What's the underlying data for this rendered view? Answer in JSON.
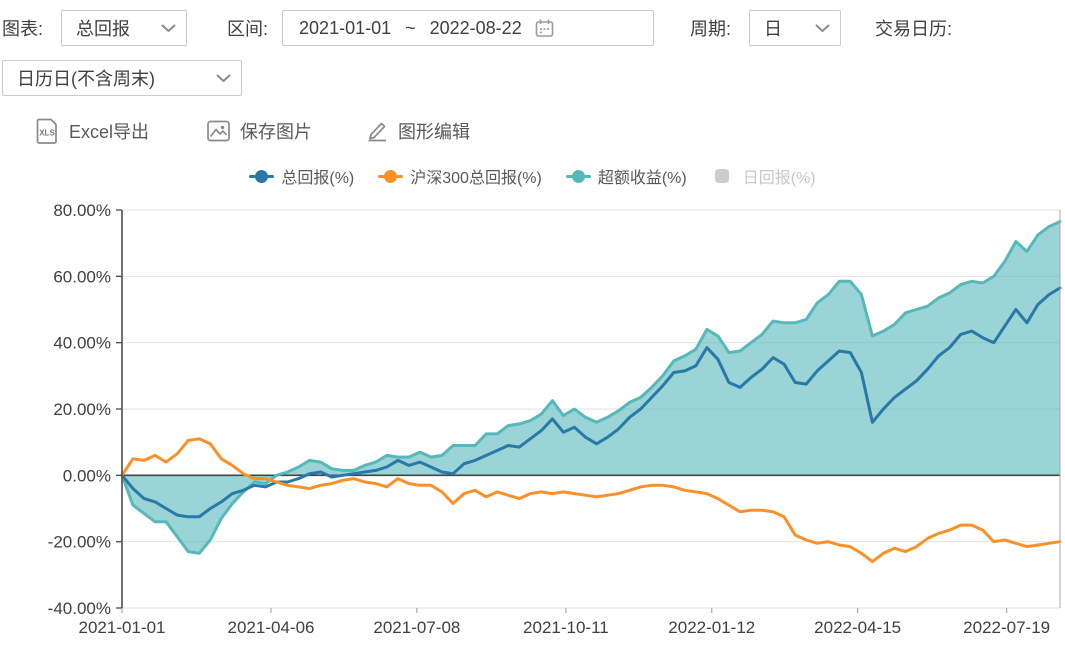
{
  "toolbar": {
    "chart_label": "图表:",
    "chart_select": "总回报",
    "range_label": "区间:",
    "range_start": "2021-01-01",
    "range_separator": "~",
    "range_end": "2022-08-22",
    "period_label": "周期:",
    "period_select": "日",
    "calendar_label": "交易日历:",
    "calendar_select": "日历日(不含周末)"
  },
  "actions": {
    "export_excel": "Excel导出",
    "save_image": "保存图片",
    "edit_graph": "图形编辑",
    "xls_icon_text": "XLS"
  },
  "legend": {
    "items": [
      {
        "label": "总回报(%)",
        "color": "#2878a8",
        "marker": "line-dot",
        "enabled": true
      },
      {
        "label": "沪深300总回报(%)",
        "color": "#fa9128",
        "marker": "line-dot",
        "enabled": true
      },
      {
        "label": "超额收益(%)",
        "color": "#56b8ba",
        "marker": "line-dot",
        "enabled": true
      },
      {
        "label": "日回报(%)",
        "color": "#cccccc",
        "marker": "round-rect",
        "enabled": false
      }
    ]
  },
  "chart_data": {
    "type": "line",
    "x_start": "2021-01-01",
    "x_end": "2022-08-22",
    "total_days": 598,
    "sample_interval_days": 7,
    "x_tick_labels": [
      "2021-01-01",
      "2021-04-06",
      "2021-07-08",
      "2021-10-11",
      "2022-01-12",
      "2022-04-15",
      "2022-07-19"
    ],
    "x_tick_days": [
      0,
      95,
      188,
      283,
      376,
      469,
      564
    ],
    "y_tick_labels": [
      "80.00%",
      "60.00%",
      "40.00%",
      "20.00%",
      "0.00%",
      "-20.00%",
      "-40.00%"
    ],
    "y_ticks": [
      80,
      60,
      40,
      20,
      0,
      -20,
      -40
    ],
    "ylim": [
      -40,
      80
    ],
    "grid": true,
    "legend_position": "top",
    "colors": {
      "grid": "#e2e2e2",
      "axis": "#4d4d4d",
      "zero_line": "#444444",
      "right_border": "#aaaaaa",
      "area_fill": "rgba(86,184,186,0.6)"
    },
    "series": [
      {
        "name": "总回报(%)",
        "type": "line",
        "color": "#2878a8",
        "visible": true,
        "values": [
          0,
          -4,
          -7,
          -8,
          -10,
          -12,
          -12.5,
          -12.5,
          -10,
          -8,
          -5.5,
          -4.5,
          -3,
          -3.5,
          -2,
          -2,
          -1,
          0.5,
          1,
          -0.5,
          0,
          0.5,
          1,
          1.5,
          2.5,
          4.5,
          3,
          4,
          2.5,
          1,
          0.5,
          3.5,
          4.5,
          6,
          7.5,
          9,
          8.5,
          11,
          13.5,
          17,
          13,
          14.5,
          11.5,
          9.5,
          11.5,
          14,
          17.5,
          20,
          23.5,
          27,
          31,
          31.5,
          33,
          38.5,
          35,
          28,
          26.5,
          29.5,
          32,
          35.5,
          33.5,
          28,
          27.5,
          31.5,
          34.5,
          37.5,
          37,
          31,
          16,
          20,
          23.5,
          26,
          28.5,
          32,
          36,
          38.5,
          42.5,
          43.5,
          41.5,
          40,
          45,
          50,
          46,
          51.5,
          54.5,
          56.5
        ]
      },
      {
        "name": "沪深300总回报(%)",
        "type": "line",
        "color": "#fa9128",
        "visible": true,
        "values": [
          0,
          5,
          4.5,
          6,
          4,
          6.5,
          10.5,
          11,
          9.5,
          5,
          3,
          0.5,
          -1,
          -1,
          -2,
          -3,
          -3.5,
          -4,
          -3,
          -2.5,
          -1.5,
          -1,
          -2,
          -2.5,
          -3.5,
          -1,
          -2.5,
          -3,
          -3,
          -5,
          -8.5,
          -5.5,
          -4.5,
          -6.5,
          -5,
          -6,
          -7,
          -5.5,
          -5,
          -5.5,
          -5,
          -5.5,
          -6,
          -6.5,
          -6,
          -5.5,
          -4.5,
          -3.5,
          -3,
          -3,
          -3.5,
          -4.5,
          -5,
          -5.5,
          -7,
          -9,
          -11,
          -10.5,
          -10.5,
          -11,
          -12.5,
          -18,
          -19.5,
          -20.5,
          -20,
          -21,
          -21.5,
          -23.5,
          -26,
          -23.5,
          -22,
          -23,
          -21.5,
          -19,
          -17.5,
          -16.5,
          -15,
          -15,
          -16.5,
          -20,
          -19.5,
          -20.5,
          -21.5,
          -21,
          -20.5,
          -20
        ]
      },
      {
        "name": "超额收益(%)",
        "type": "area",
        "color": "#56b8ba",
        "visible": true,
        "values": [
          0,
          -9,
          -11.5,
          -14,
          -14,
          -18.5,
          -23,
          -23.5,
          -19.5,
          -13,
          -8.5,
          -5,
          -2,
          -2.5,
          0,
          1,
          2.5,
          4.5,
          4,
          2,
          1.5,
          1.5,
          3,
          4,
          6,
          5.5,
          5.5,
          7,
          5.5,
          6,
          9,
          9,
          9,
          12.5,
          12.5,
          15,
          15.5,
          16.5,
          18.5,
          22.5,
          18,
          20,
          17.5,
          16,
          17.5,
          19.5,
          22,
          23.5,
          26.5,
          30,
          34.5,
          36,
          38,
          44,
          42,
          37,
          37.5,
          40,
          42.5,
          46.5,
          46,
          46,
          47,
          52,
          54.5,
          58.5,
          58.5,
          54.5,
          42,
          43.5,
          45.5,
          49,
          50,
          51,
          53.5,
          55,
          57.5,
          58.5,
          58,
          60,
          64.5,
          70.5,
          67.5,
          72.5,
          75,
          76.5
        ]
      },
      {
        "name": "日回报(%)",
        "type": "bar",
        "color": "#cccccc",
        "visible": false,
        "values": null
      }
    ]
  }
}
